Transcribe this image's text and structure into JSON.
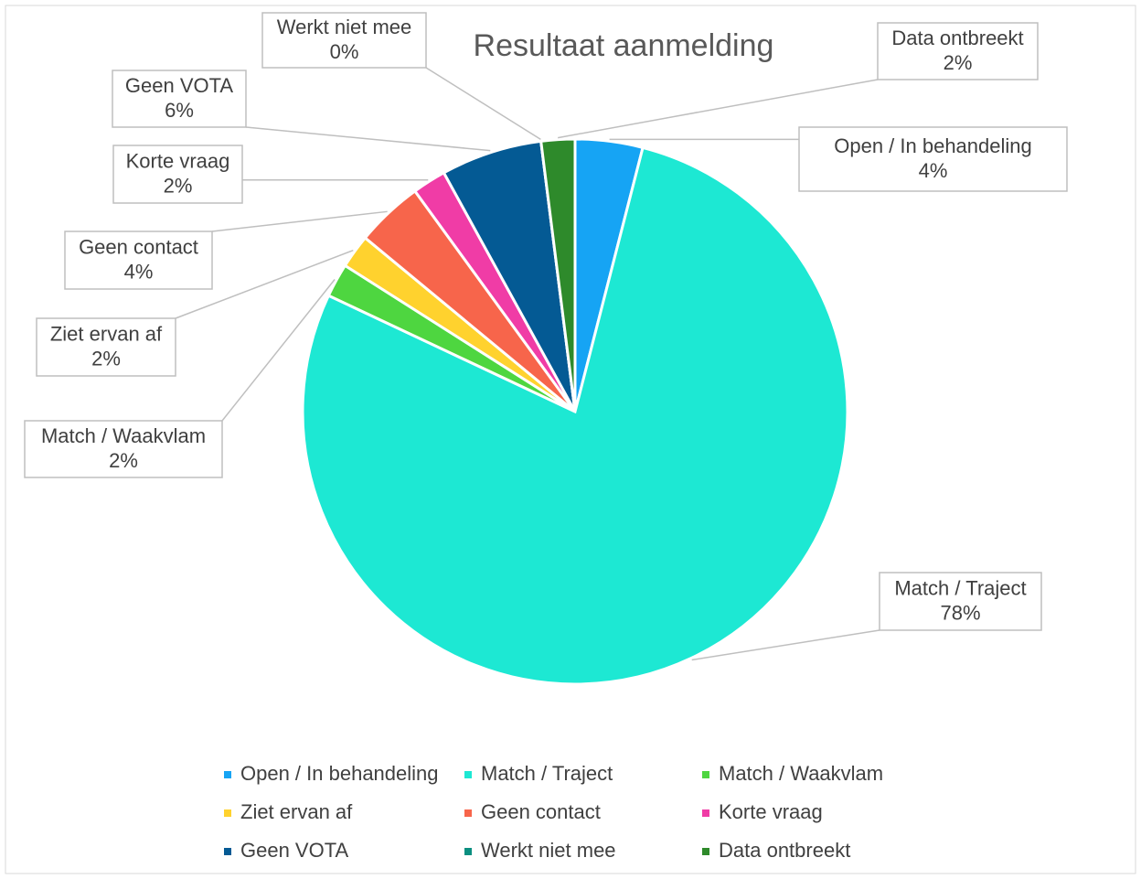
{
  "chart_data": {
    "type": "pie",
    "title": "Resultaat aanmelding",
    "categories": [
      "Open / In behandeling",
      "Match / Traject",
      "Match / Waakvlam",
      "Ziet ervan af",
      "Geen contact",
      "Korte vraag",
      "Geen VOTA",
      "Werkt niet mee",
      "Data ontbreekt"
    ],
    "values": [
      4,
      78,
      2,
      2,
      4,
      2,
      6,
      0,
      2
    ],
    "value_labels": [
      "4%",
      "78%",
      "2%",
      "2%",
      "4%",
      "2%",
      "6%",
      "0%",
      "2%"
    ],
    "colors": [
      "#16a4f4",
      "#1de8d3",
      "#4ed640",
      "#ffd22e",
      "#f7654b",
      "#f03ca6",
      "#045a94",
      "#0b8f80",
      "#2e8a2b"
    ],
    "legend": "bottom"
  }
}
